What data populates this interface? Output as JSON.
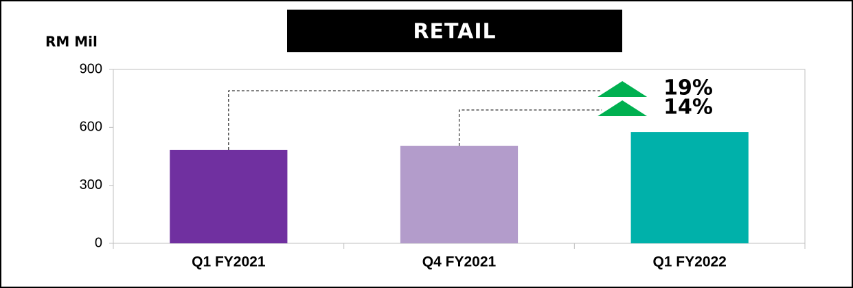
{
  "chart_data": {
    "type": "bar",
    "title": "RETAIL",
    "y_label": "RM Mil",
    "categories": [
      "Q1 FY2021",
      "Q4 FY2021",
      "Q1 FY2022"
    ],
    "values": [
      484,
      505,
      576
    ],
    "colors": [
      "#7030a0",
      "#b39ccb",
      "#00b1aa"
    ],
    "ylim": [
      0,
      900
    ],
    "yticks": [
      0,
      300,
      600,
      900
    ],
    "annotations": [
      "19%",
      "14%"
    ],
    "annotation_color": "#00b050"
  }
}
